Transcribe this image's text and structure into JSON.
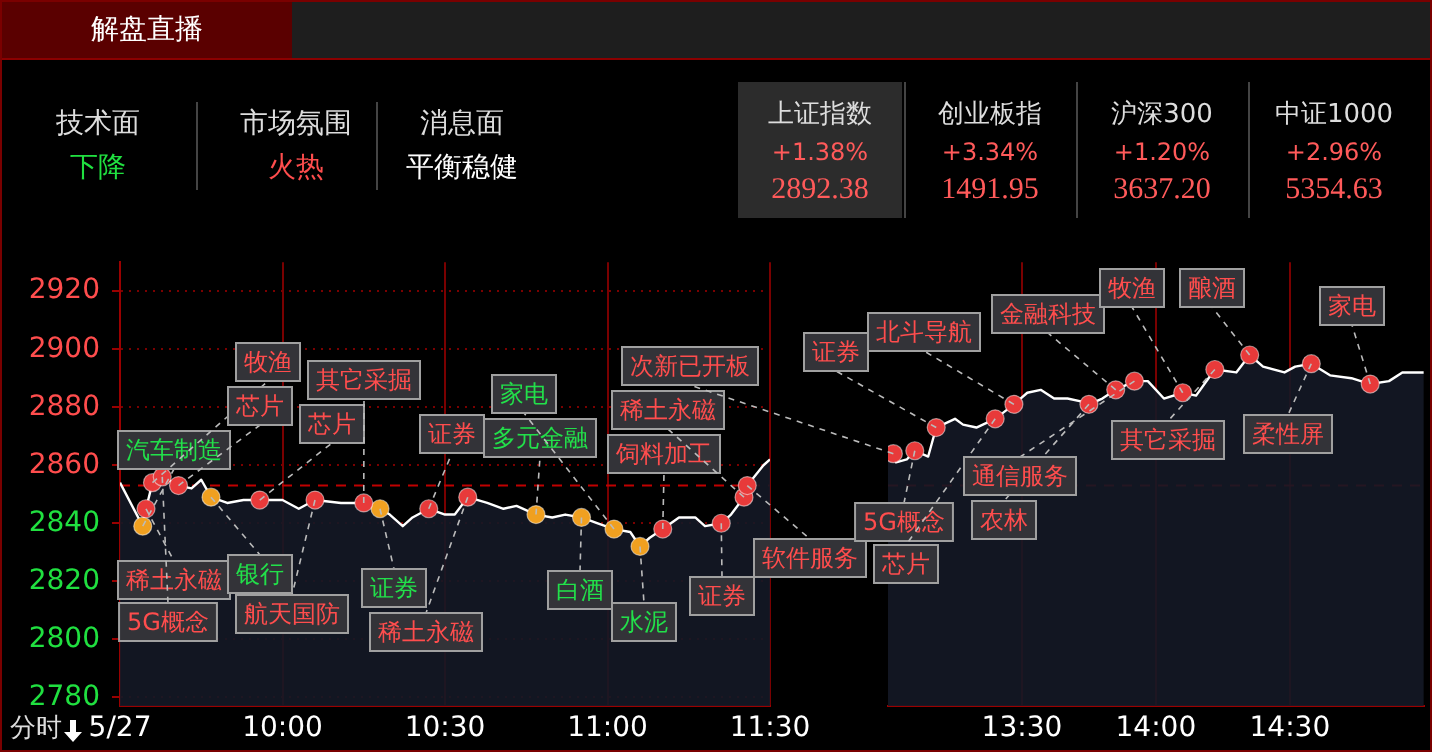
{
  "chart_data": [
    {
      "type": "area",
      "title": "解盘直播",
      "xlim": [
        9.5,
        11.5
      ],
      "xticks": [
        {
          "value": 9.5,
          "label": "5/27"
        },
        {
          "value": 10,
          "label": "10:00"
        },
        {
          "value": 10.5,
          "label": "10:30"
        },
        {
          "value": 11,
          "label": "11:00"
        },
        {
          "value": 11.5,
          "label": "11:30"
        }
      ],
      "ylim": [
        2777,
        2930
      ],
      "yticks": [
        2780,
        2800,
        2820,
        2840,
        2860,
        2880,
        2900,
        2920
      ],
      "grid": true,
      "legend": false,
      "ref_lines": [
        {
          "axis": "y",
          "value": 2853,
          "color": "#c00000",
          "line_style": "dashed"
        }
      ],
      "series": [
        {
          "type": "area",
          "color": "#ffffff",
          "x": [
            9.5,
            9.57,
            9.58,
            9.6,
            9.63,
            9.68,
            9.72,
            9.75,
            9.78,
            9.83,
            9.88,
            9.93,
            10,
            10.05,
            10.1,
            10.18,
            10.25,
            10.3,
            10.33,
            10.37,
            10.4,
            10.45,
            10.5,
            10.53,
            10.57,
            10.63,
            10.68,
            10.72,
            10.78,
            10.83,
            10.87,
            10.92,
            10.97,
            11.02,
            11.07,
            11.1,
            11.13,
            11.17,
            11.22,
            11.27,
            11.3,
            11.35,
            11.38,
            11.42,
            11.43,
            11.48,
            11.5
          ],
          "values": [
            2854,
            2839,
            2845,
            2854,
            2856,
            2853,
            2852,
            2855,
            2849,
            2847,
            2848,
            2848,
            2848,
            2845,
            2848,
            2847,
            2847,
            2845,
            2843,
            2839,
            2842,
            2845,
            2843,
            2843,
            2849,
            2847,
            2845,
            2846,
            2843,
            2842,
            2843,
            2842,
            2840,
            2838,
            2837,
            2832,
            2835,
            2838,
            2842,
            2842,
            2839,
            2840,
            2843,
            2849,
            2853,
            2860,
            2862
          ]
        },
        {
          "type": "scatter",
          "marker": "circle",
          "color": "#e83a3a",
          "x": [
            9.58,
            9.6,
            9.63,
            9.68,
            9.93,
            10.1,
            10.25,
            10.45,
            10.57,
            11.17,
            11.35,
            11.42,
            11.43
          ],
          "values": [
            2845,
            2854,
            2856,
            2853,
            2848,
            2848,
            2847,
            2845,
            2849,
            2838,
            2840,
            2849,
            2853
          ]
        },
        {
          "type": "scatter",
          "marker": "circle",
          "color": "#f0a020",
          "x": [
            9.57,
            9.78,
            10.3,
            10.78,
            10.92,
            11.02,
            11.1
          ],
          "values": [
            2839,
            2849,
            2845,
            2843,
            2842,
            2838,
            2832
          ]
        }
      ],
      "annotations": [
        "技术面",
        "下降",
        "市场氛围",
        "火热",
        "消息面",
        "平衡稳健",
        "上证指数",
        "+1.38%",
        "2892.38",
        "创业板指",
        "+3.34%",
        "1491.95",
        "沪深300",
        "+1.20%",
        "3637.20",
        "中证1000",
        "+2.96%",
        "5354.63",
        "分时",
        {
          "text": "汽车制造",
          "x": 9.57,
          "y": 2839
        },
        {
          "text": "稀土永磁",
          "x": 9.58,
          "y": 2845
        },
        {
          "text": "牧渔",
          "x": 9.6,
          "y": 2854
        },
        {
          "text": "5G概念",
          "x": 9.63,
          "y": 2856
        },
        {
          "text": "芯片",
          "x": 9.68,
          "y": 2853
        },
        {
          "text": "银行",
          "x": 9.78,
          "y": 2849
        },
        {
          "text": "芯片",
          "x": 9.93,
          "y": 2848
        },
        {
          "text": "航天国防",
          "x": 10.1,
          "y": 2848
        },
        {
          "text": "其它采掘",
          "x": 10.25,
          "y": 2847
        },
        {
          "text": "证券",
          "x": 10.3,
          "y": 2845
        },
        {
          "text": "证券",
          "x": 10.45,
          "y": 2845
        },
        {
          "text": "稀土永磁",
          "x": 10.57,
          "y": 2849
        },
        {
          "text": "多元金融",
          "x": 10.78,
          "y": 2843
        },
        {
          "text": "白酒",
          "x": 10.92,
          "y": 2842
        },
        {
          "text": "家电",
          "x": 11.02,
          "y": 2838
        },
        {
          "text": "水泥",
          "x": 11.1,
          "y": 2832
        },
        {
          "text": "饲料加工",
          "x": 11.17,
          "y": 2838
        },
        {
          "text": "证券",
          "x": 11.35,
          "y": 2840
        },
        {
          "text": "稀土永磁",
          "x": 11.42,
          "y": 2849
        },
        {
          "text": "软件服务",
          "x": 11.43,
          "y": 2853
        }
      ]
    },
    {
      "type": "area",
      "xlim": [
        13,
        15
      ],
      "xticks": [
        {
          "value": 13.5,
          "label": "13:30"
        },
        {
          "value": 14,
          "label": "14:00"
        },
        {
          "value": 14.5,
          "label": "14:30"
        }
      ],
      "ylim": [
        2777,
        2930
      ],
      "yticks": [
        2780,
        2800,
        2820,
        2840,
        2860,
        2880,
        2900,
        2920
      ],
      "tick_labels": "x",
      "grid": true,
      "legend": false,
      "ref_lines": [
        {
          "axis": "y",
          "value": 2853,
          "color": "#c00000",
          "line_style": "dashed"
        }
      ],
      "series": [
        {
          "type": "area",
          "color": "#ffffff",
          "x": [
            13,
            13.02,
            13.03,
            13.07,
            13.1,
            13.15,
            13.18,
            13.25,
            13.28,
            13.33,
            13.4,
            13.47,
            13.52,
            13.57,
            13.62,
            13.67,
            13.72,
            13.75,
            13.8,
            13.85,
            13.92,
            13.97,
            14.03,
            14.1,
            14.15,
            14.22,
            14.3,
            14.35,
            14.4,
            14.48,
            14.52,
            14.58,
            14.65,
            14.73,
            14.8,
            14.87,
            14.92,
            15
          ],
          "values": [
            2862,
            2864,
            2861,
            2862,
            2865,
            2863,
            2873,
            2876,
            2874,
            2873,
            2876,
            2881,
            2885,
            2886,
            2883,
            2883,
            2882,
            2881,
            2883,
            2886,
            2889,
            2889,
            2883,
            2885,
            2884,
            2893,
            2892,
            2898,
            2894,
            2892,
            2894,
            2895,
            2891,
            2890,
            2888,
            2889,
            2892,
            2892
          ]
        },
        {
          "type": "scatter",
          "marker": "circle",
          "color": "#e83a3a",
          "x": [
            13.02,
            13.1,
            13.18,
            13.4,
            13.47,
            13.75,
            13.85,
            13.92,
            14.1,
            14.22,
            14.35,
            14.58,
            14.8
          ],
          "values": [
            2864,
            2865,
            2873,
            2876,
            2881,
            2881,
            2886,
            2889,
            2885,
            2893,
            2898,
            2895,
            2888
          ]
        }
      ],
      "annotations": [
        {
          "text": "次新已开板",
          "x": 13.02,
          "y": 2864
        },
        {
          "text": "5G概念",
          "x": 13.1,
          "y": 2865
        },
        {
          "text": "证券",
          "x": 13.18,
          "y": 2873
        },
        {
          "text": "芯片",
          "x": 13.4,
          "y": 2876
        },
        {
          "text": "北斗导航",
          "x": 13.47,
          "y": 2881
        },
        {
          "text": "农林",
          "x": 13.75,
          "y": 2881
        },
        {
          "text": "金融科技",
          "x": 13.85,
          "y": 2886
        },
        {
          "text": "通信服务",
          "x": 13.92,
          "y": 2889
        },
        {
          "text": "牧渔",
          "x": 14.1,
          "y": 2885
        },
        {
          "text": "其它采掘",
          "x": 14.22,
          "y": 2893
        },
        {
          "text": "酿酒",
          "x": 14.35,
          "y": 2898
        },
        {
          "text": "柔性屏",
          "x": 14.58,
          "y": 2895
        },
        {
          "text": "家电",
          "x": 14.8,
          "y": 2888
        }
      ]
    }
  ]
}
